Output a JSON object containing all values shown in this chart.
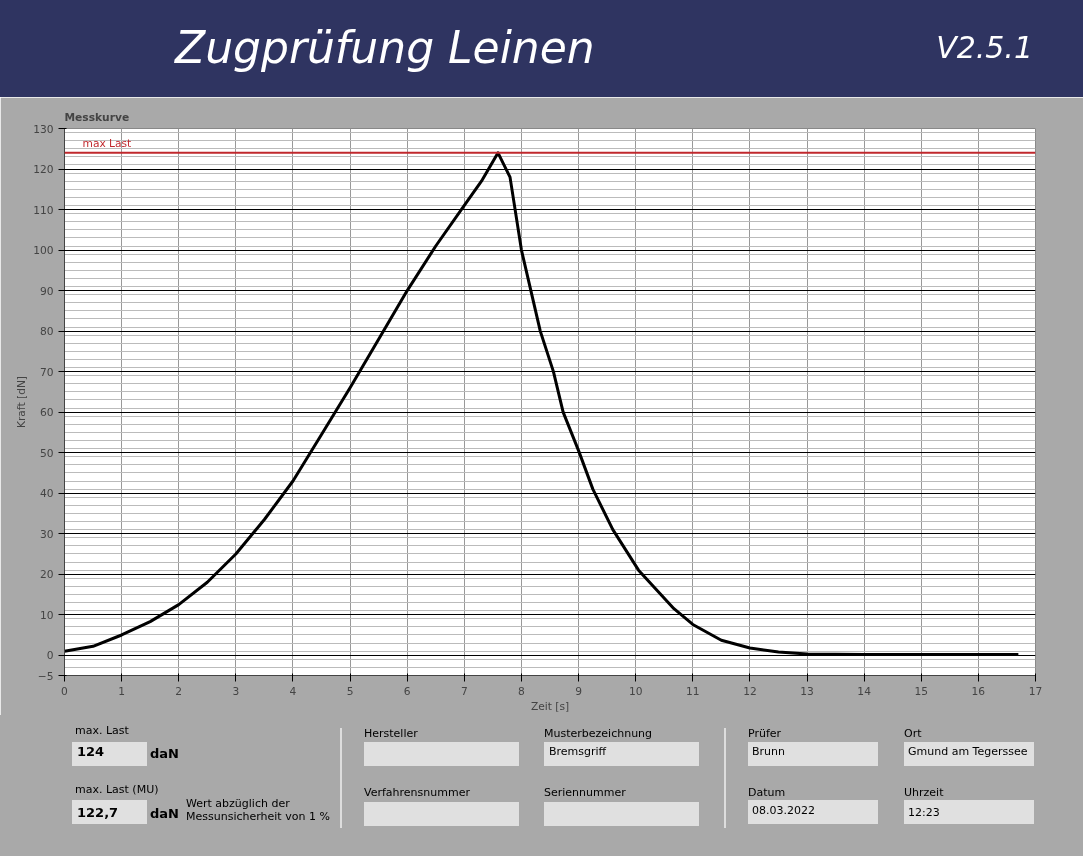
{
  "chart_data": {
    "type": "line",
    "title": "Zugprüfung Leinen",
    "subtitle": "Messkurve",
    "xlabel": "Zeit [s]",
    "ylabel": "Kraft [dN]",
    "x": [
      0,
      0.5,
      1,
      1.5,
      2,
      2.5,
      3,
      3.5,
      4,
      4.5,
      5,
      5.5,
      6,
      6.5,
      7,
      7.3,
      7.59,
      7.8,
      8,
      8.33,
      8.56,
      8.73,
      9,
      9.25,
      9.6,
      10.05,
      10.67,
      11,
      11.5,
      12,
      12.5,
      13,
      14,
      15,
      16,
      16.7
    ],
    "series": [
      {
        "color": "#000000",
        "values": [
          1,
          2.2,
          5,
          8.3,
          12.5,
          18,
          25,
          33.5,
          43,
          54.5,
          66,
          78,
          90,
          101,
          111,
          117,
          124,
          118,
          100,
          80,
          70,
          60,
          50.5,
          41,
          31,
          21,
          11.5,
          7.6,
          3.7,
          1.8,
          0.8,
          0.3,
          0.2,
          0.2,
          0.2,
          0.2
        ]
      }
    ],
    "xlim": [
      0,
      17
    ],
    "xticks": [
      0,
      1,
      2,
      3,
      4,
      5,
      6,
      7,
      8,
      9,
      10,
      11,
      12,
      13,
      14,
      15,
      16,
      17
    ],
    "ylim": [
      -5,
      130
    ],
    "yticks": [
      -5,
      0,
      10,
      20,
      30,
      40,
      50,
      60,
      70,
      80,
      90,
      100,
      110,
      120,
      130
    ],
    "grid": true,
    "line_style": "solid",
    "marker": "none",
    "ref_lines": [
      {
        "axis": "y",
        "value": 124,
        "label": "max Last",
        "color": "#c0282d"
      }
    ],
    "annotations": [
      "V2.5.1",
      "max. Last",
      "124",
      "daN",
      "max. Last (MU)",
      "122,7",
      "daN",
      "Wert abzüglich der\nMessunsicherheit von 1 %",
      "Hersteller",
      "Musterbezeichnung",
      "Bremsgriff",
      "Verfahrensnummer",
      "Seriennummer",
      "Prüfer",
      "Brunn",
      "Ort",
      "Gmund am Tegerssee",
      "Datum",
      "08.03.2022",
      "Uhrzeit",
      "12:23"
    ]
  }
}
